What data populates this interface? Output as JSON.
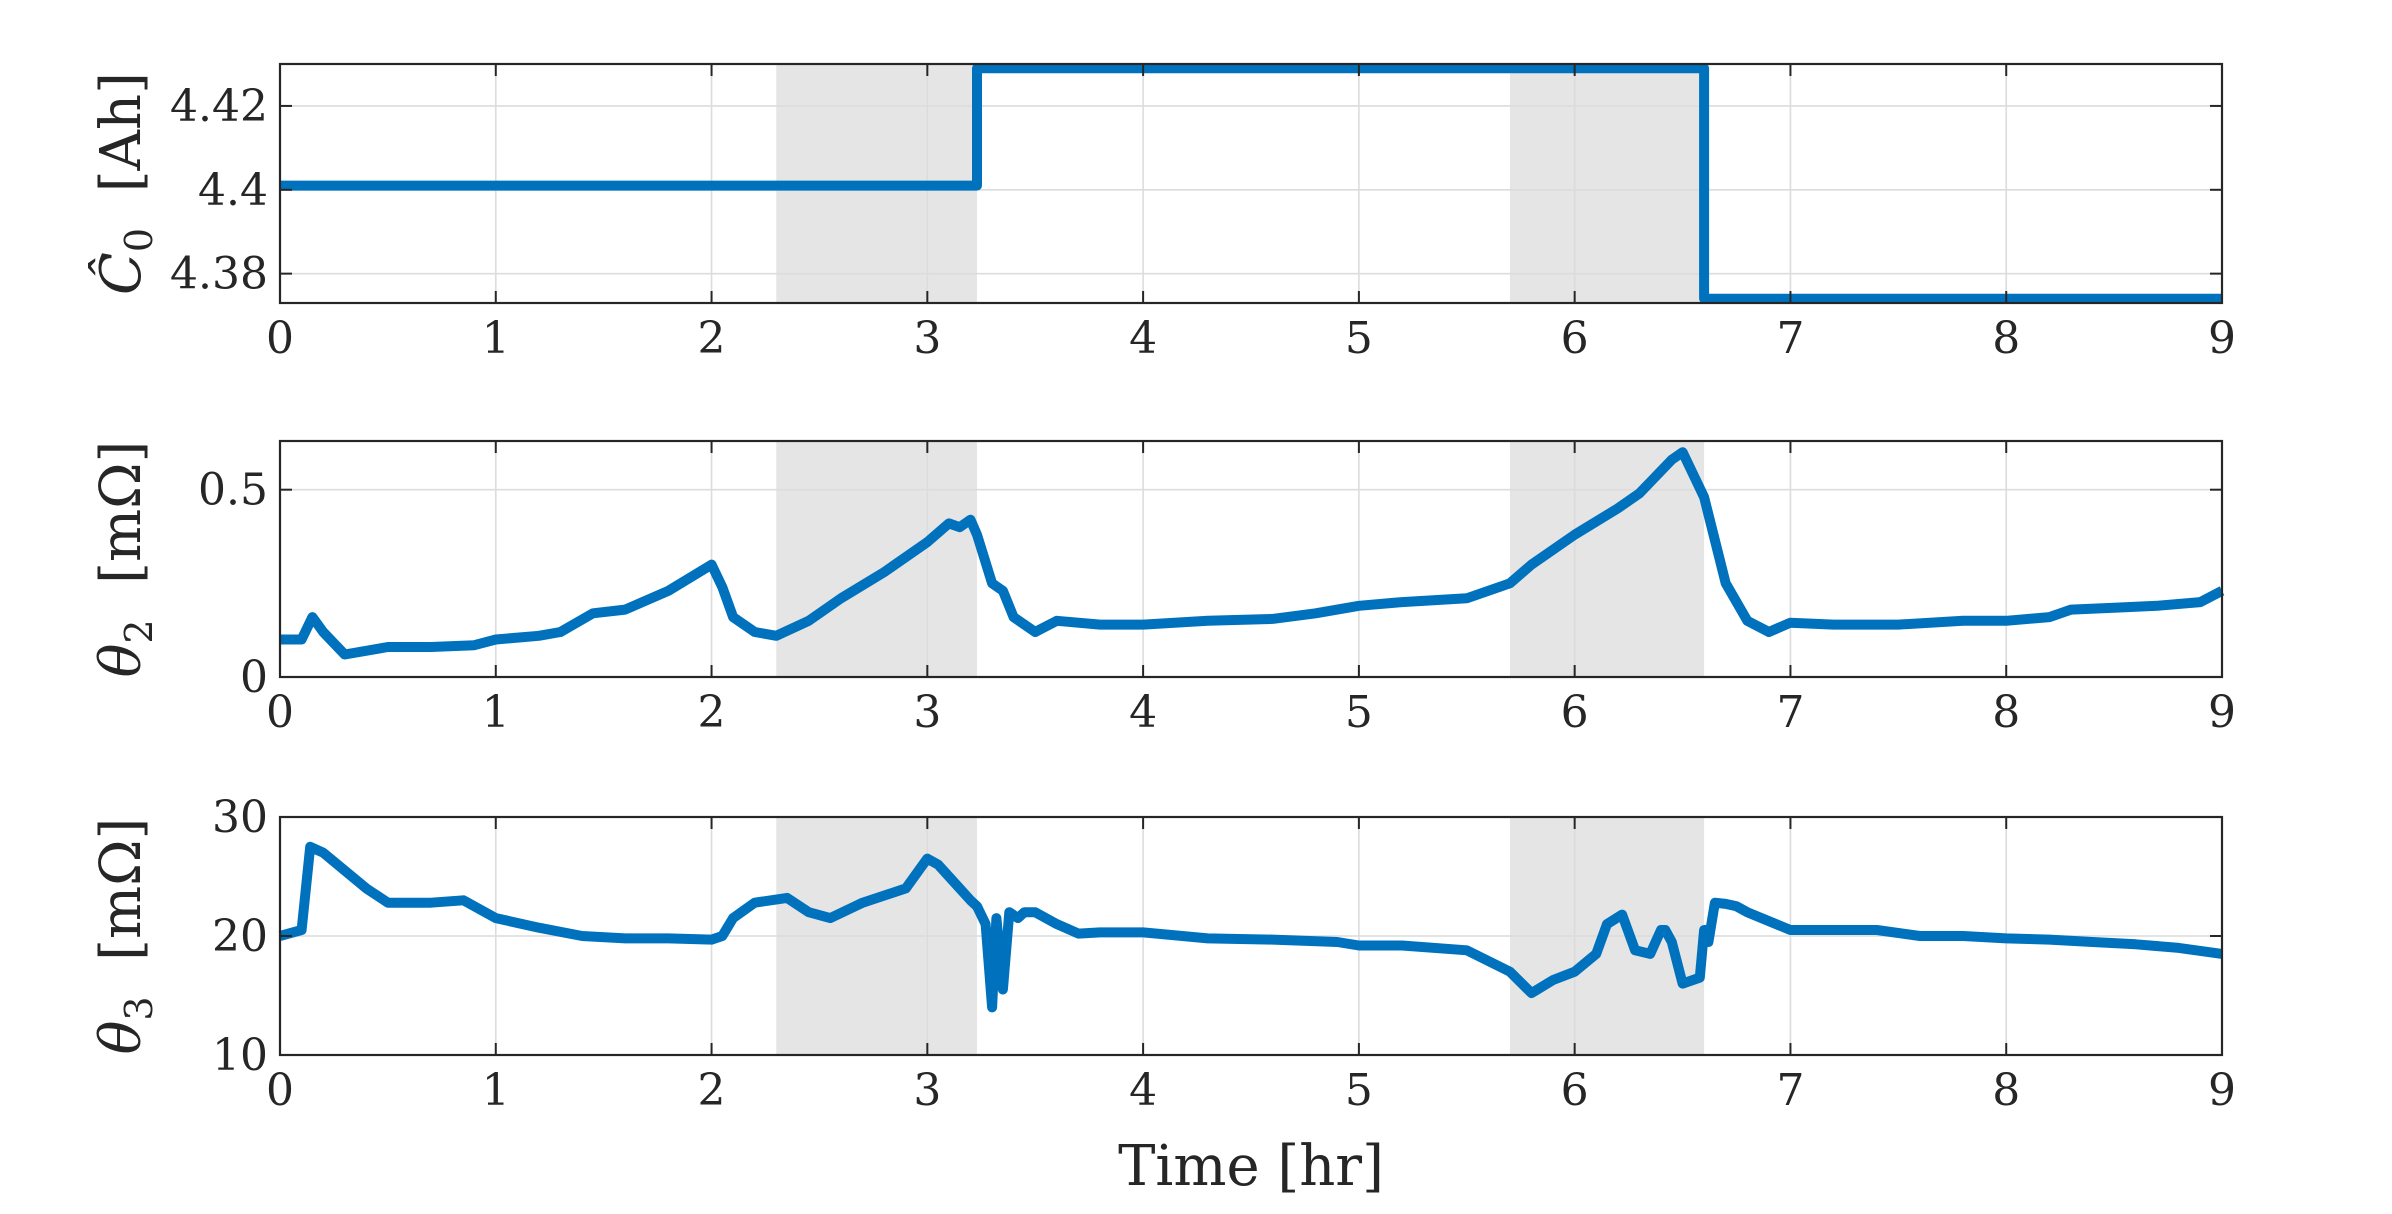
{
  "chart_data": [
    {
      "type": "line",
      "ylabel_symbol": "Ĉ",
      "ylabel_subscript": "0",
      "ylabel_unit": "[Ah]",
      "xlim": [
        0,
        9
      ],
      "ylim": [
        4.373,
        4.43
      ],
      "xticks": [
        0,
        1,
        2,
        3,
        4,
        5,
        6,
        7,
        8,
        9
      ],
      "yticks": [
        4.38,
        4.4,
        4.42
      ],
      "ytick_labels": [
        "4.38",
        "4.4",
        "4.42"
      ],
      "grid": true,
      "shaded_regions": [
        [
          2.3,
          3.23
        ],
        [
          5.7,
          6.6
        ]
      ],
      "color": "#0072BD",
      "series": [
        {
          "x": [
            0,
            3.23,
            3.23,
            6.6,
            6.6,
            9
          ],
          "y": [
            4.401,
            4.401,
            4.429,
            4.429,
            4.374,
            4.374
          ]
        }
      ]
    },
    {
      "type": "line",
      "ylabel_symbol": "θ",
      "ylabel_subscript": "2",
      "ylabel_unit": "[mΩ]",
      "xlim": [
        0,
        9
      ],
      "ylim": [
        0,
        0.63
      ],
      "xticks": [
        0,
        1,
        2,
        3,
        4,
        5,
        6,
        7,
        8,
        9
      ],
      "yticks": [
        0,
        0.5
      ],
      "ytick_labels": [
        "0",
        "0.5"
      ],
      "grid": true,
      "shaded_regions": [
        [
          2.3,
          3.23
        ],
        [
          5.7,
          6.6
        ]
      ],
      "color": "#0072BD",
      "series": [
        {
          "x": [
            0,
            0.1,
            0.15,
            0.2,
            0.3,
            0.5,
            0.7,
            0.9,
            1.0,
            1.2,
            1.3,
            1.45,
            1.6,
            1.8,
            2.0,
            2.05,
            2.1,
            2.2,
            2.3,
            2.45,
            2.6,
            2.8,
            3.0,
            3.1,
            3.15,
            3.2,
            3.23,
            3.3,
            3.35,
            3.4,
            3.5,
            3.6,
            3.8,
            4.0,
            4.3,
            4.6,
            4.8,
            5.0,
            5.2,
            5.5,
            5.7,
            5.8,
            6.0,
            6.2,
            6.3,
            6.45,
            6.5,
            6.6,
            6.7,
            6.8,
            6.9,
            7.0,
            7.2,
            7.5,
            7.8,
            8.0,
            8.2,
            8.3,
            8.5,
            8.7,
            8.9,
            9.0
          ],
          "y": [
            0.1,
            0.1,
            0.16,
            0.12,
            0.06,
            0.08,
            0.08,
            0.085,
            0.1,
            0.11,
            0.12,
            0.17,
            0.18,
            0.23,
            0.3,
            0.24,
            0.16,
            0.12,
            0.11,
            0.15,
            0.21,
            0.28,
            0.36,
            0.41,
            0.4,
            0.42,
            0.38,
            0.25,
            0.23,
            0.16,
            0.12,
            0.15,
            0.14,
            0.14,
            0.15,
            0.155,
            0.17,
            0.19,
            0.2,
            0.21,
            0.25,
            0.3,
            0.38,
            0.45,
            0.49,
            0.58,
            0.6,
            0.48,
            0.25,
            0.15,
            0.12,
            0.145,
            0.14,
            0.14,
            0.15,
            0.15,
            0.16,
            0.18,
            0.185,
            0.19,
            0.2,
            0.23
          ]
        }
      ]
    },
    {
      "type": "line",
      "ylabel_symbol": "θ",
      "ylabel_subscript": "3",
      "ylabel_unit": "[mΩ]",
      "xlabel": "Time [hr]",
      "xlim": [
        0,
        9
      ],
      "ylim": [
        10,
        30
      ],
      "xticks": [
        0,
        1,
        2,
        3,
        4,
        5,
        6,
        7,
        8,
        9
      ],
      "yticks": [
        10,
        20,
        30
      ],
      "ytick_labels": [
        "10",
        "20",
        "30"
      ],
      "grid": true,
      "shaded_regions": [
        [
          2.3,
          3.23
        ],
        [
          5.7,
          6.6
        ]
      ],
      "color": "#0072BD",
      "series": [
        {
          "x": [
            0,
            0.1,
            0.14,
            0.2,
            0.3,
            0.4,
            0.5,
            0.7,
            0.85,
            1.0,
            1.2,
            1.4,
            1.6,
            1.8,
            2.0,
            2.05,
            2.1,
            2.2,
            2.35,
            2.45,
            2.55,
            2.7,
            2.9,
            3.0,
            3.05,
            3.1,
            3.2,
            3.23,
            3.27,
            3.3,
            3.32,
            3.35,
            3.38,
            3.42,
            3.45,
            3.5,
            3.6,
            3.7,
            3.8,
            4.0,
            4.3,
            4.6,
            4.9,
            5.0,
            5.2,
            5.5,
            5.7,
            5.8,
            5.9,
            6.0,
            6.1,
            6.15,
            6.22,
            6.28,
            6.35,
            6.4,
            6.42,
            6.45,
            6.5,
            6.58,
            6.6,
            6.61,
            6.62,
            6.65,
            6.7,
            6.75,
            6.8,
            7.0,
            7.2,
            7.4,
            7.6,
            7.8,
            8.0,
            8.2,
            8.4,
            8.6,
            8.8,
            9.0
          ],
          "y": [
            20,
            20.5,
            27.5,
            27,
            25.5,
            24,
            22.8,
            22.8,
            23,
            21.5,
            20.7,
            20,
            19.8,
            19.8,
            19.7,
            20,
            21.5,
            22.8,
            23.2,
            22,
            21.5,
            22.8,
            24,
            26.5,
            26,
            25,
            23,
            22.5,
            21,
            14,
            21.5,
            15.5,
            22,
            21.5,
            22,
            22,
            21,
            20.2,
            20.3,
            20.3,
            19.8,
            19.7,
            19.5,
            19.2,
            19.2,
            18.8,
            17,
            15.2,
            16.3,
            17,
            18.5,
            21,
            21.8,
            18.8,
            18.5,
            20.5,
            20.5,
            19.5,
            16,
            16.5,
            20.5,
            20.5,
            19.5,
            22.8,
            22.7,
            22.5,
            22,
            20.5,
            20.5,
            20.5,
            20,
            20,
            19.8,
            19.7,
            19.5,
            19.3,
            19,
            18.5
          ]
        }
      ]
    }
  ]
}
